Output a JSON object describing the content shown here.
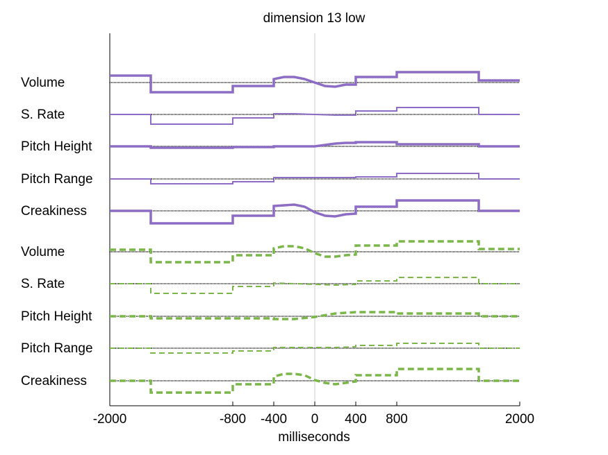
{
  "chart_data": {
    "type": "line",
    "title": "dimension 13 low",
    "xlabel": "milliseconds",
    "ylabel": "",
    "xlim": [
      -2000,
      2000
    ],
    "xticks": [
      -2000,
      -800,
      -400,
      0,
      400,
      800,
      2000
    ],
    "grid": false,
    "legend": "none",
    "colors": {
      "purple": "#8c6cc4",
      "green": "#7ab648",
      "baseline": "#000000",
      "zero_line": "#cccccc"
    },
    "groups": [
      {
        "style": "solid",
        "color": "#8c6cc4",
        "rows": [
          {
            "label": "Volume",
            "width": 3.5,
            "points": [
              [
                -2000,
                0.1
              ],
              [
                -1600,
                0.1
              ],
              [
                -1600,
                -0.14
              ],
              [
                -800,
                -0.14
              ],
              [
                -800,
                -0.05
              ],
              [
                -400,
                -0.05
              ],
              [
                -400,
                0.05
              ],
              [
                -300,
                0.08
              ],
              [
                -200,
                0.08
              ],
              [
                -100,
                0.05
              ],
              [
                0,
                0.0
              ],
              [
                100,
                -0.05
              ],
              [
                200,
                -0.06
              ],
              [
                300,
                -0.03
              ],
              [
                400,
                -0.03
              ],
              [
                400,
                0.08
              ],
              [
                800,
                0.08
              ],
              [
                800,
                0.15
              ],
              [
                1600,
                0.15
              ],
              [
                1600,
                0.03
              ],
              [
                2000,
                0.03
              ]
            ]
          },
          {
            "label": "S. Rate",
            "width": 2,
            "points": [
              [
                -2000,
                0
              ],
              [
                -1600,
                0
              ],
              [
                -1600,
                -0.14
              ],
              [
                -800,
                -0.14
              ],
              [
                -800,
                -0.05
              ],
              [
                -400,
                -0.05
              ],
              [
                -400,
                0.01
              ],
              [
                -300,
                0.01
              ],
              [
                -200,
                0.01
              ],
              [
                0,
                0
              ],
              [
                200,
                -0.01
              ],
              [
                400,
                -0.01
              ],
              [
                400,
                0.05
              ],
              [
                800,
                0.05
              ],
              [
                800,
                0.1
              ],
              [
                1600,
                0.1
              ],
              [
                1600,
                0
              ],
              [
                2000,
                0
              ]
            ]
          },
          {
            "label": "Pitch Height",
            "width": 3.5,
            "points": [
              [
                -2000,
                0
              ],
              [
                -1600,
                0
              ],
              [
                -1600,
                -0.02
              ],
              [
                -800,
                -0.02
              ],
              [
                -800,
                -0.01
              ],
              [
                -400,
                -0.01
              ],
              [
                -400,
                0
              ],
              [
                0,
                0
              ],
              [
                200,
                0.04
              ],
              [
                300,
                0.05
              ],
              [
                400,
                0.05
              ],
              [
                400,
                0.06
              ],
              [
                800,
                0.06
              ],
              [
                800,
                0.03
              ],
              [
                1600,
                0.03
              ],
              [
                1600,
                0
              ],
              [
                2000,
                0
              ]
            ]
          },
          {
            "label": "Pitch Range",
            "width": 2,
            "points": [
              [
                -2000,
                0
              ],
              [
                -1600,
                0
              ],
              [
                -1600,
                -0.07
              ],
              [
                -800,
                -0.07
              ],
              [
                -800,
                -0.04
              ],
              [
                -400,
                -0.04
              ],
              [
                -400,
                0.02
              ],
              [
                0,
                0.02
              ],
              [
                200,
                0.02
              ],
              [
                400,
                0.02
              ],
              [
                400,
                0.03
              ],
              [
                800,
                0.03
              ],
              [
                800,
                0.08
              ],
              [
                1600,
                0.08
              ],
              [
                1600,
                0
              ],
              [
                2000,
                0
              ]
            ]
          },
          {
            "label": "Creakiness",
            "width": 3.5,
            "points": [
              [
                -2000,
                0
              ],
              [
                -1600,
                0
              ],
              [
                -1600,
                -0.18
              ],
              [
                -800,
                -0.18
              ],
              [
                -800,
                -0.07
              ],
              [
                -400,
                -0.07
              ],
              [
                -400,
                0.07
              ],
              [
                -300,
                0.08
              ],
              [
                -200,
                0.09
              ],
              [
                -100,
                0.06
              ],
              [
                0,
                -0.02
              ],
              [
                100,
                -0.07
              ],
              [
                200,
                -0.08
              ],
              [
                300,
                -0.05
              ],
              [
                400,
                -0.04
              ],
              [
                400,
                0.06
              ],
              [
                800,
                0.06
              ],
              [
                800,
                0.15
              ],
              [
                1600,
                0.15
              ],
              [
                1600,
                0
              ],
              [
                2000,
                0
              ]
            ]
          }
        ]
      },
      {
        "style": "dashed",
        "color": "#7ab648",
        "rows": [
          {
            "label": "Volume",
            "width": 3.5,
            "points": [
              [
                -2000,
                0.03
              ],
              [
                -1600,
                0.03
              ],
              [
                -1600,
                -0.15
              ],
              [
                -800,
                -0.15
              ],
              [
                -800,
                -0.05
              ],
              [
                -400,
                -0.05
              ],
              [
                -400,
                0.05
              ],
              [
                -300,
                0.08
              ],
              [
                -200,
                0.08
              ],
              [
                -100,
                0.05
              ],
              [
                0,
                -0.02
              ],
              [
                100,
                -0.07
              ],
              [
                200,
                -0.07
              ],
              [
                300,
                -0.05
              ],
              [
                400,
                -0.04
              ],
              [
                400,
                0.09
              ],
              [
                800,
                0.09
              ],
              [
                800,
                0.15
              ],
              [
                1600,
                0.15
              ],
              [
                1600,
                0.04
              ],
              [
                2000,
                0.04
              ]
            ]
          },
          {
            "label": "S. Rate",
            "width": 2,
            "points": [
              [
                -2000,
                0
              ],
              [
                -1600,
                0
              ],
              [
                -1600,
                -0.14
              ],
              [
                -800,
                -0.14
              ],
              [
                -800,
                -0.04
              ],
              [
                -400,
                -0.04
              ],
              [
                -400,
                0.01
              ],
              [
                0,
                -0.01
              ],
              [
                200,
                -0.02
              ],
              [
                400,
                -0.01
              ],
              [
                400,
                0.04
              ],
              [
                800,
                0.04
              ],
              [
                800,
                0.09
              ],
              [
                1600,
                0.09
              ],
              [
                1600,
                0
              ],
              [
                2000,
                0
              ]
            ]
          },
          {
            "label": "Pitch Height",
            "width": 3.5,
            "points": [
              [
                -2000,
                0
              ],
              [
                -1600,
                0
              ],
              [
                -1600,
                -0.03
              ],
              [
                -800,
                -0.03
              ],
              [
                -800,
                -0.03
              ],
              [
                -400,
                -0.03
              ],
              [
                -400,
                -0.04
              ],
              [
                -200,
                -0.04
              ],
              [
                0,
                -0.01
              ],
              [
                200,
                0.04
              ],
              [
                300,
                0.05
              ],
              [
                400,
                0.06
              ],
              [
                400,
                0.06
              ],
              [
                800,
                0.06
              ],
              [
                800,
                0.04
              ],
              [
                1600,
                0.04
              ],
              [
                1600,
                0
              ],
              [
                2000,
                0
              ]
            ]
          },
          {
            "label": "Pitch Range",
            "width": 2,
            "points": [
              [
                -2000,
                0
              ],
              [
                -1600,
                0
              ],
              [
                -1600,
                -0.07
              ],
              [
                -800,
                -0.07
              ],
              [
                -800,
                -0.04
              ],
              [
                -400,
                -0.04
              ],
              [
                -400,
                0.01
              ],
              [
                0,
                0.01
              ],
              [
                200,
                0.01
              ],
              [
                400,
                0.02
              ],
              [
                400,
                0.04
              ],
              [
                800,
                0.04
              ],
              [
                800,
                0.07
              ],
              [
                1600,
                0.07
              ],
              [
                1600,
                0
              ],
              [
                2000,
                0
              ]
            ]
          },
          {
            "label": "Creakiness",
            "width": 3.5,
            "points": [
              [
                -2000,
                0
              ],
              [
                -1600,
                0
              ],
              [
                -1600,
                -0.17
              ],
              [
                -800,
                -0.17
              ],
              [
                -800,
                -0.05
              ],
              [
                -400,
                -0.05
              ],
              [
                -400,
                0.06
              ],
              [
                -300,
                0.1
              ],
              [
                -200,
                0.1
              ],
              [
                -100,
                0.08
              ],
              [
                0,
                0.01
              ],
              [
                100,
                -0.03
              ],
              [
                200,
                -0.05
              ],
              [
                300,
                -0.03
              ],
              [
                400,
                -0.01
              ],
              [
                400,
                0.08
              ],
              [
                800,
                0.08
              ],
              [
                800,
                0.17
              ],
              [
                1600,
                0.17
              ],
              [
                1600,
                0
              ],
              [
                2000,
                0
              ]
            ]
          }
        ]
      }
    ]
  }
}
